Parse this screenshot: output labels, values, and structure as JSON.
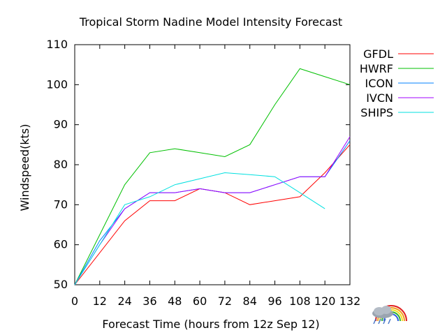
{
  "chart_data": {
    "type": "line",
    "title": "Tropical Storm Nadine Model Intensity Forecast",
    "xlabel": "Forecast Time (hours from 12z Sep 12)",
    "ylabel": "Windspeed(kts)",
    "xlim": [
      0,
      132
    ],
    "ylim": [
      50,
      110
    ],
    "xticks": [
      0,
      12,
      24,
      36,
      48,
      60,
      72,
      84,
      96,
      108,
      120,
      132
    ],
    "yticks": [
      50,
      60,
      70,
      80,
      90,
      100,
      110
    ],
    "grid": false,
    "legend_position": "top-right",
    "series": [
      {
        "name": "GFDL",
        "color": "#ff0000",
        "x": [
          0,
          24,
          36,
          48,
          60,
          72,
          84,
          96,
          108,
          120,
          132
        ],
        "y": [
          50,
          66,
          71,
          71,
          74,
          73,
          70,
          71,
          72,
          78,
          85
        ]
      },
      {
        "name": "HWRF",
        "color": "#00c000",
        "x": [
          0,
          24,
          36,
          48,
          60,
          72,
          84,
          96,
          108,
          120,
          132
        ],
        "y": [
          50,
          75,
          83,
          84,
          83,
          82,
          85,
          95,
          104,
          102,
          100
        ]
      },
      {
        "name": "ICON",
        "color": "#0080ff",
        "x": [
          0,
          12,
          24,
          36,
          48,
          60,
          72,
          84,
          96,
          108,
          120,
          132
        ],
        "y": [
          50,
          61,
          69,
          73,
          73,
          74,
          73,
          73,
          75,
          77,
          77,
          86
        ]
      },
      {
        "name": "IVCN",
        "color": "#a000ff",
        "x": [
          0,
          12,
          24,
          36,
          48,
          60,
          72,
          84,
          96,
          108,
          120,
          132
        ],
        "y": [
          50,
          60,
          69,
          73,
          73,
          74,
          73,
          73,
          75,
          77,
          77,
          87
        ]
      },
      {
        "name": "SHIPS",
        "color": "#00e0e0",
        "x": [
          0,
          24,
          36,
          48,
          60,
          72,
          84,
          96,
          108,
          120
        ],
        "y": [
          50,
          70,
          72,
          75,
          76.5,
          78,
          77.5,
          77,
          73,
          69
        ]
      }
    ]
  },
  "logo": {
    "icon": "rain-cloud-rainbow-icon"
  }
}
